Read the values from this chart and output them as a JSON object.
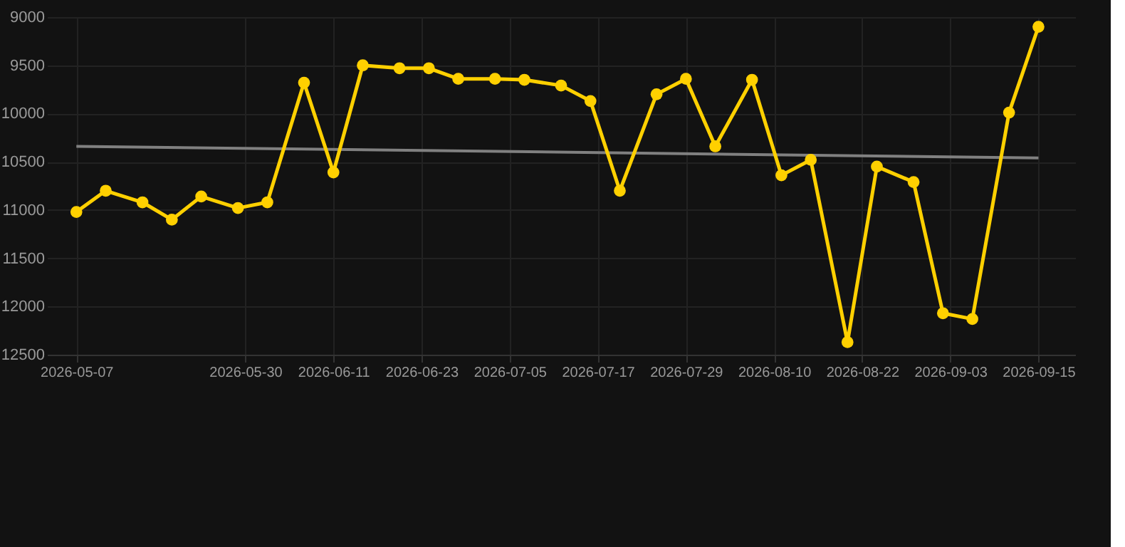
{
  "chart_data": {
    "type": "line",
    "x": [
      "2026-05-07",
      "2026-05-11",
      "2026-05-16",
      "2026-05-20",
      "2026-05-24",
      "2026-05-29",
      "2026-06-02",
      "2026-06-07",
      "2026-06-11",
      "2026-06-15",
      "2026-06-20",
      "2026-06-24",
      "2026-06-28",
      "2026-07-03",
      "2026-07-07",
      "2026-07-12",
      "2026-07-16",
      "2026-07-20",
      "2026-07-25",
      "2026-07-29",
      "2026-08-02",
      "2026-08-07",
      "2026-08-11",
      "2026-08-15",
      "2026-08-20",
      "2026-08-24",
      "2026-08-29",
      "2026-09-02",
      "2026-09-06",
      "2026-09-11",
      "2026-09-15"
    ],
    "series": [
      {
        "color": "#ffd000",
        "marker": "circle",
        "values": [
          11020,
          10800,
          10920,
          11100,
          10860,
          10980,
          10920,
          9680,
          10610,
          9500,
          9530,
          9530,
          9640,
          9640,
          9650,
          9710,
          9870,
          10800,
          9800,
          9640,
          10340,
          9650,
          10640,
          10480,
          12370,
          10550,
          10710,
          12070,
          12130,
          9990,
          9100
        ]
      },
      {
        "color": "#808080",
        "marker": "none",
        "x": [
          "2026-05-07",
          "2026-09-15"
        ],
        "values": [
          10340,
          10460
        ]
      }
    ],
    "xlim": [
      "2026-05-03",
      "2026-09-20"
    ],
    "xticks": [
      "2026-05-07",
      "2026-05-30",
      "2026-06-11",
      "2026-06-23",
      "2026-07-05",
      "2026-07-17",
      "2026-07-29",
      "2026-08-10",
      "2026-08-22",
      "2026-09-03",
      "2026-09-15"
    ],
    "ylim": [
      12500,
      9000
    ],
    "yticks": [
      9000,
      9500,
      10000,
      10500,
      11000,
      11500,
      12000,
      12500
    ],
    "grid": true,
    "line_style": "solid"
  }
}
